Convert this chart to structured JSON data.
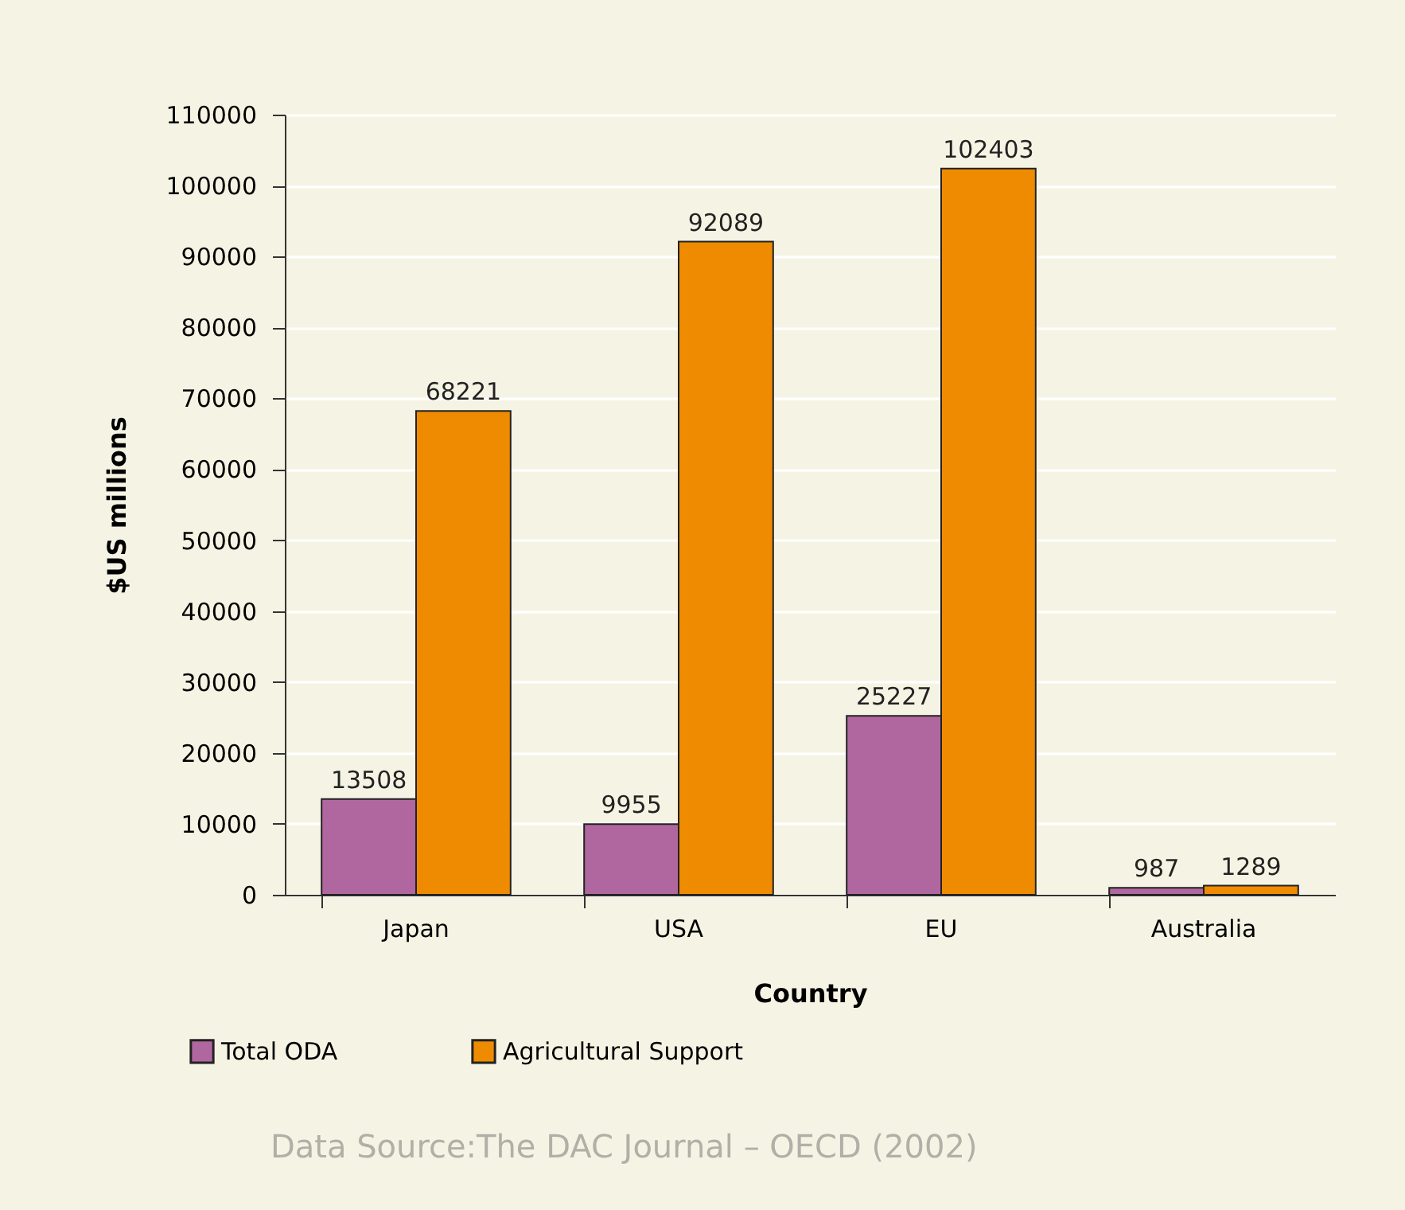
{
  "chart_data": {
    "type": "bar",
    "xlabel": "Country",
    "ylabel": "$US millions",
    "categories": [
      "Japan",
      "USA",
      "EU",
      "Australia"
    ],
    "series": [
      {
        "name": "Total ODA",
        "color": "#b0679f",
        "values": [
          13508,
          9955,
          25227,
          987
        ]
      },
      {
        "name": "Agricultural Support",
        "color": "#ee8b00",
        "values": [
          68221,
          92089,
          102403,
          1289
        ]
      }
    ],
    "ylim": [
      0,
      110000
    ],
    "yticks": [
      0,
      10000,
      20000,
      30000,
      40000,
      50000,
      60000,
      70000,
      80000,
      90000,
      100000,
      110000
    ],
    "grid": "y",
    "legend": "bottom left",
    "data_labels": true,
    "annotations": [
      "Data Source:The DAC Journal – OECD (2002)"
    ]
  }
}
